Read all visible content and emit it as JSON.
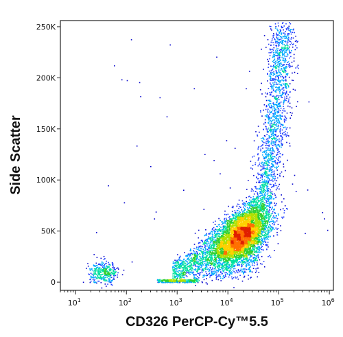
{
  "chart_data": {
    "type": "scatter",
    "style": "flow-cytometry pseudocolor density dot plot",
    "xlabel": "CD326 PerCP-Cy™5.5",
    "ylabel": "Side Scatter",
    "x_scale": "log",
    "xlim": [
      5,
      1200000
    ],
    "x_ticks": [
      {
        "value": 10,
        "base": "10",
        "exp": "1"
      },
      {
        "value": 100,
        "base": "10",
        "exp": "2"
      },
      {
        "value": 1000,
        "base": "10",
        "exp": "3"
      },
      {
        "value": 10000,
        "base": "10",
        "exp": "4"
      },
      {
        "value": 100000,
        "base": "10",
        "exp": "5"
      },
      {
        "value": 1000000,
        "base": "10",
        "exp": "6"
      }
    ],
    "y_scale": "linear",
    "ylim": [
      -8000,
      256000
    ],
    "y_ticks": [
      {
        "value": 0,
        "label": "0"
      },
      {
        "value": 50000,
        "label": "50K"
      },
      {
        "value": 100000,
        "label": "100K"
      },
      {
        "value": 150000,
        "label": "150K"
      },
      {
        "value": 200000,
        "label": "200K"
      },
      {
        "value": 250000,
        "label": "250K"
      }
    ],
    "grid": false,
    "colormap": [
      "#0000cc",
      "#1e3cff",
      "#00a8ff",
      "#00e0a0",
      "#30d030",
      "#b0e000",
      "#ffd000",
      "#ff7000",
      "#e02000"
    ],
    "populations": [
      {
        "name": "main",
        "x_log_center": 4.25,
        "x_log_sd": 0.28,
        "y_center": 45000,
        "y_sd": 12000,
        "weight": 0.55
      },
      {
        "name": "upper-arm",
        "x_log_range": [
          4.4,
          5.35
        ],
        "y_range": [
          60000,
          250000
        ],
        "weight": 0.2
      },
      {
        "name": "spread",
        "x_log_range": [
          2.9,
          4.6
        ],
        "y_range": [
          5000,
          160000
        ],
        "weight": 0.18
      },
      {
        "name": "low-cluster",
        "x_log_center": 1.55,
        "x_log_sd": 0.14,
        "y_center": 10000,
        "y_sd": 5000,
        "weight": 0.04
      },
      {
        "name": "baseline-band",
        "x_log_range": [
          2.6,
          3.4
        ],
        "y_range": [
          0,
          3000
        ],
        "weight": 0.03
      }
    ]
  }
}
